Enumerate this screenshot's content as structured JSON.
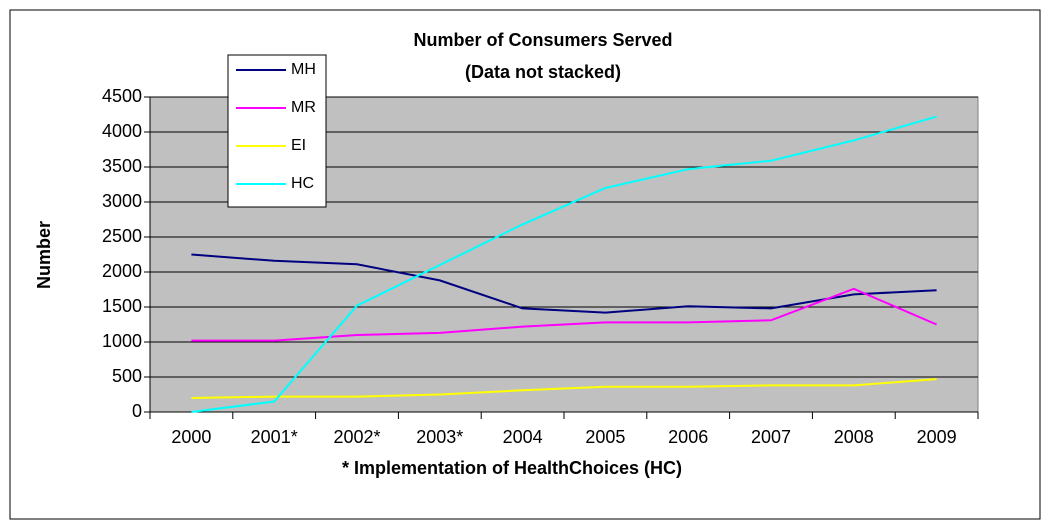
{
  "chart_data": {
    "type": "line",
    "title": "Number of Consumers Served",
    "subtitle": "(Data not stacked)",
    "y_label": "Number",
    "x_label": "* Implementation of HealthChoices (HC)",
    "categories": [
      "2000",
      "2001*",
      "2002*",
      "2003*",
      "2004",
      "2005",
      "2006",
      "2007",
      "2008",
      "2009"
    ],
    "series": [
      {
        "name": "MH",
        "color": "#000080",
        "values": [
          2250,
          2160,
          2110,
          1880,
          1480,
          1420,
          1510,
          1480,
          1680,
          1740
        ]
      },
      {
        "name": "MR",
        "color": "#ff00ff",
        "values": [
          1020,
          1020,
          1100,
          1130,
          1220,
          1280,
          1280,
          1310,
          1760,
          1250
        ]
      },
      {
        "name": "EI",
        "color": "#ffff00",
        "values": [
          200,
          220,
          220,
          250,
          310,
          360,
          360,
          380,
          380,
          470
        ]
      },
      {
        "name": "HC",
        "color": "#00ffff",
        "values": [
          0,
          150,
          1520,
          2100,
          2680,
          3200,
          3470,
          3590,
          3880,
          4220
        ]
      }
    ],
    "ylim": [
      0,
      4500
    ],
    "yticks": [
      0,
      500,
      1000,
      1500,
      2000,
      2500,
      3000,
      3500,
      4000,
      4500
    ],
    "grid": true,
    "plot_background": "#c0c0c0",
    "legend": "upper left"
  }
}
